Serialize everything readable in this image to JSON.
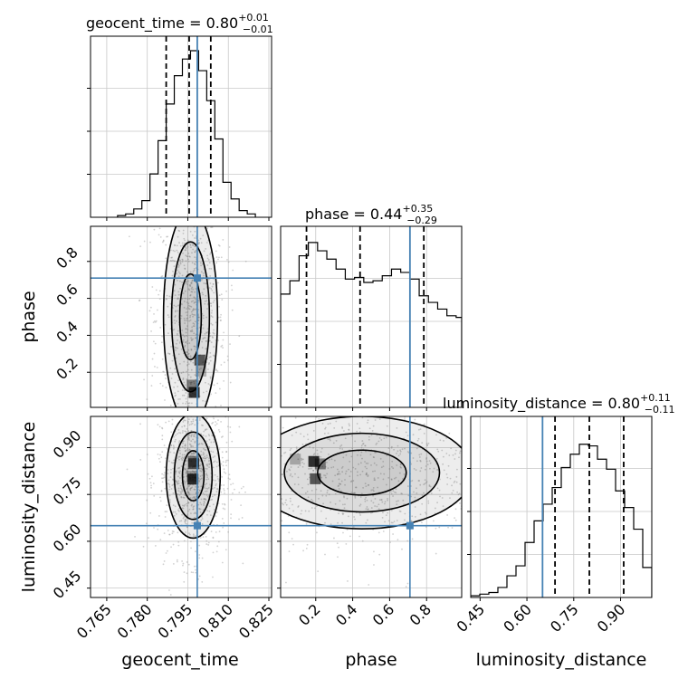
{
  "chart_data": {
    "type": "corner",
    "parameters": [
      {
        "key": "geocent_time",
        "label": "geocent_time",
        "title_prefix": "geocent_time = ",
        "median": "0.80",
        "err_plus": "+0.01",
        "err_minus": "−0.01",
        "range": [
          0.759,
          0.826
        ],
        "ticks": [
          0.765,
          0.78,
          0.795,
          0.81,
          0.825
        ],
        "tick_labels": [
          "0.765",
          "0.780",
          "0.795",
          "0.810",
          "0.825"
        ],
        "truth": 0.7985,
        "quantiles": [
          0.787,
          0.7955,
          0.8035
        ],
        "hist_bin_edges": [
          0.769,
          0.772,
          0.775,
          0.778,
          0.781,
          0.784,
          0.787,
          0.79,
          0.793,
          0.796,
          0.799,
          0.802,
          0.805,
          0.808,
          0.811,
          0.814,
          0.817,
          0.82
        ],
        "hist_density": [
          0.01,
          0.02,
          0.05,
          0.1,
          0.26,
          0.46,
          0.68,
          0.85,
          0.95,
          1.0,
          0.88,
          0.7,
          0.47,
          0.21,
          0.11,
          0.04,
          0.02
        ]
      },
      {
        "key": "phase",
        "label": "phase",
        "title_prefix": "phase = ",
        "median": "0.44",
        "err_plus": "+0.35",
        "err_minus": "−0.29",
        "range": [
          0.01,
          0.99
        ],
        "ticks": [
          0.2,
          0.4,
          0.6,
          0.8
        ],
        "tick_labels": [
          "0.2",
          "0.4",
          "0.6",
          "0.8"
        ],
        "truth": 0.71,
        "quantiles": [
          0.15,
          0.44,
          0.785
        ],
        "hist_bin_edges": [
          0.01,
          0.06,
          0.11,
          0.16,
          0.21,
          0.26,
          0.31,
          0.36,
          0.41,
          0.46,
          0.51,
          0.56,
          0.61,
          0.66,
          0.71,
          0.76,
          0.81,
          0.86,
          0.91,
          0.96,
          0.99
        ],
        "hist_density": [
          0.68,
          0.76,
          0.91,
          0.99,
          0.94,
          0.89,
          0.83,
          0.77,
          0.78,
          0.75,
          0.76,
          0.79,
          0.83,
          0.81,
          0.77,
          0.67,
          0.63,
          0.59,
          0.55,
          0.54
        ]
      },
      {
        "key": "luminosity_distance",
        "label": "luminosity_distance",
        "title_prefix": "luminosity_distance = ",
        "median": "0.80",
        "err_plus": "+0.11",
        "err_minus": "−0.11",
        "range": [
          0.42,
          1.0
        ],
        "ticks": [
          0.45,
          0.6,
          0.75,
          0.9
        ],
        "tick_labels": [
          "0.45",
          "0.60",
          "0.75",
          "0.90"
        ],
        "truth": 0.65,
        "quantiles": [
          0.69,
          0.8,
          0.91
        ],
        "hist_bin_edges": [
          0.42,
          0.449,
          0.478,
          0.507,
          0.536,
          0.565,
          0.594,
          0.623,
          0.652,
          0.681,
          0.71,
          0.739,
          0.768,
          0.797,
          0.826,
          0.855,
          0.884,
          0.913,
          0.942,
          0.971,
          1.0
        ],
        "hist_density": [
          0.01,
          0.02,
          0.03,
          0.06,
          0.13,
          0.19,
          0.33,
          0.46,
          0.56,
          0.66,
          0.78,
          0.86,
          0.92,
          0.91,
          0.83,
          0.77,
          0.64,
          0.54,
          0.41,
          0.18
        ]
      }
    ],
    "pairs": [
      {
        "x": "geocent_time",
        "y": "phase",
        "center": [
          0.796,
          0.5
        ],
        "spread": [
          0.005,
          0.29
        ],
        "density_peak": [
          0.797,
          0.2
        ]
      },
      {
        "x": "geocent_time",
        "y": "luminosity_distance",
        "center": [
          0.797,
          0.81
        ],
        "spread": [
          0.005,
          0.1
        ],
        "density_peak": [
          0.796,
          0.82
        ]
      },
      {
        "x": "phase",
        "y": "luminosity_distance",
        "center": [
          0.45,
          0.82
        ],
        "spread": [
          0.3,
          0.09
        ],
        "density_peak": [
          0.2,
          0.83
        ]
      }
    ],
    "truth_color": "#4682b4",
    "contour_color": "#000000",
    "sample_color": "#9a9a9a",
    "quantile_line_style": "dashed",
    "grid": true
  }
}
